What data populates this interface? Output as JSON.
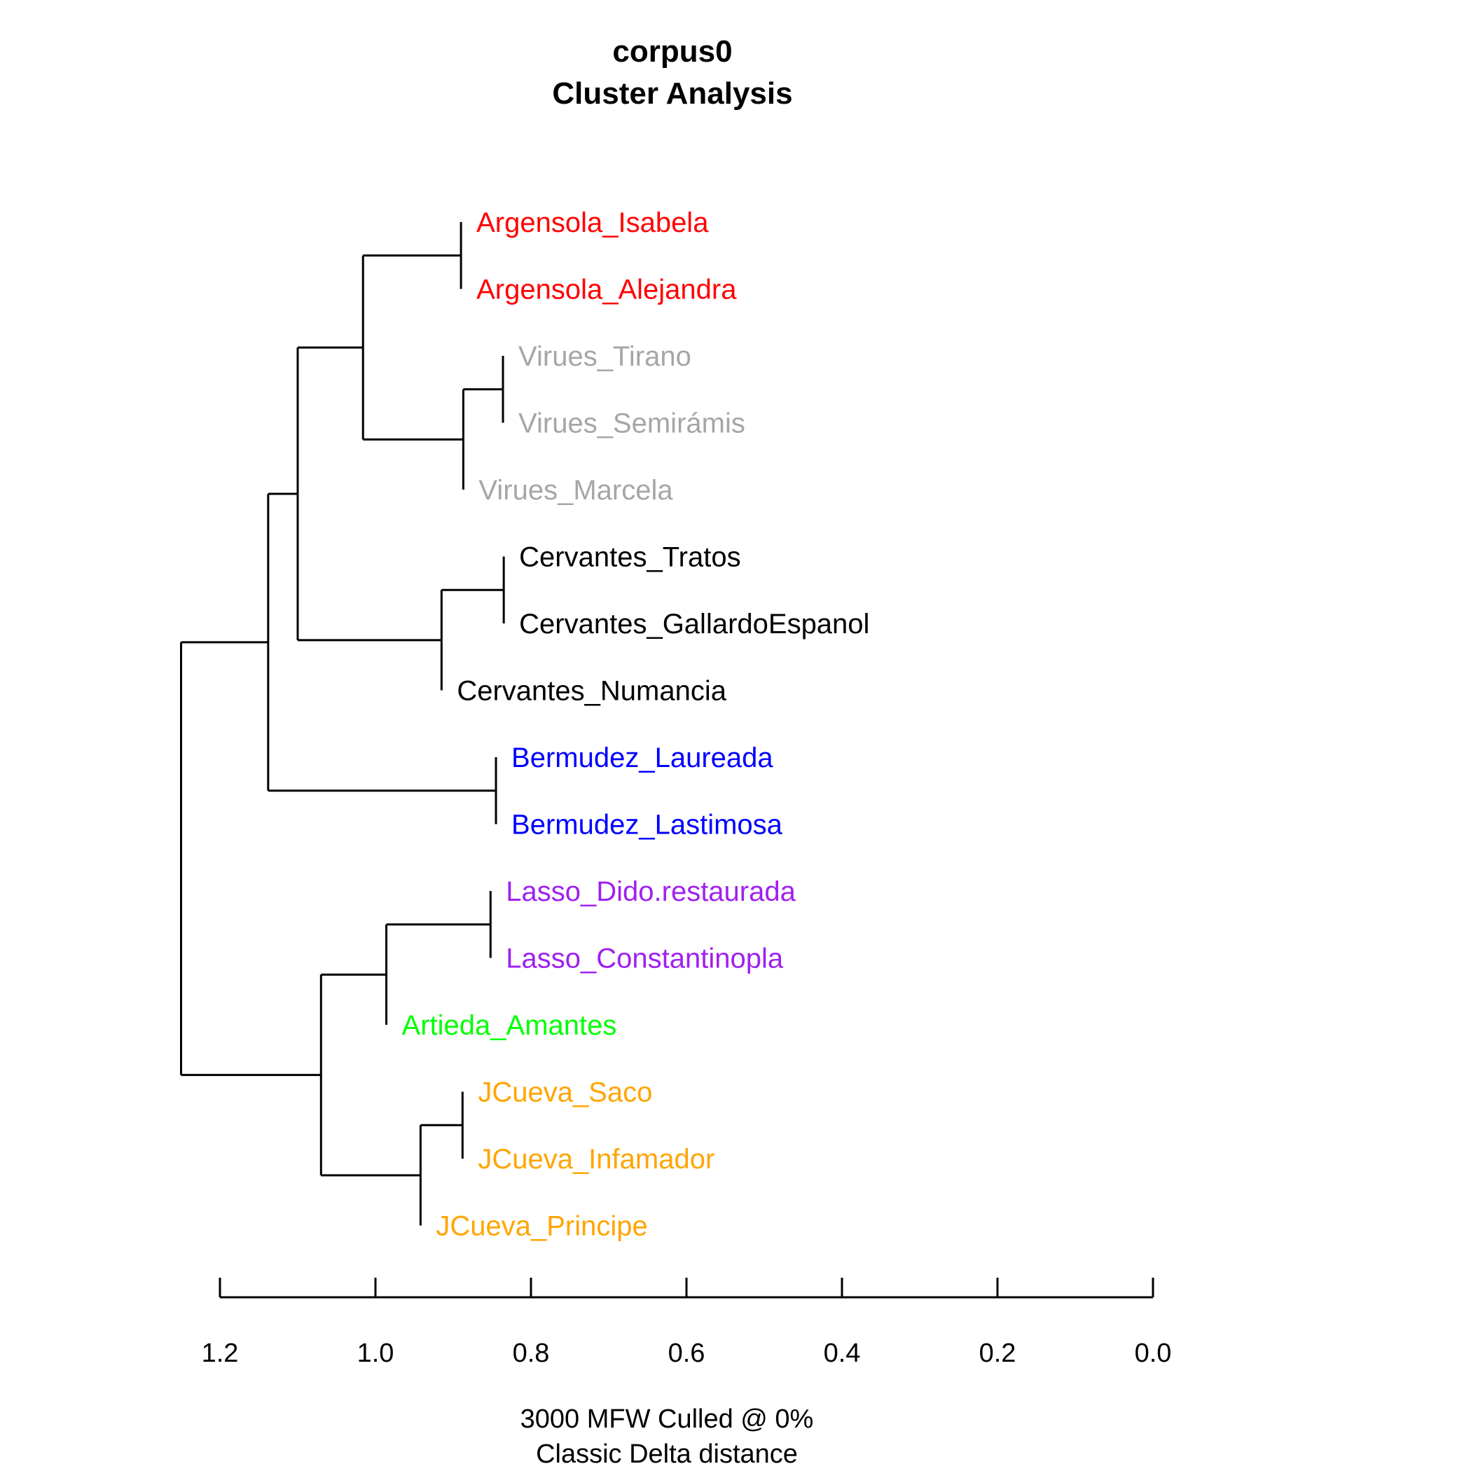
{
  "chart_data": {
    "type": "dendrogram",
    "title": [
      "corpus0",
      "Cluster Analysis"
    ],
    "xlabel": [
      "3000 MFW  Culled @ 0%",
      "Classic Delta distance"
    ],
    "xlim": [
      1.2,
      0.0
    ],
    "x_ticks": [
      1.2,
      1.0,
      0.8,
      0.6,
      0.4,
      0.2,
      0.0
    ],
    "x_tick_labels": [
      "1.2",
      "1.0",
      "0.8",
      "0.6",
      "0.4",
      "0.2",
      "0.0"
    ],
    "orientation": "leaves-right",
    "leaves": [
      {
        "label": "Argensola_Isabela",
        "color": "#FF0000"
      },
      {
        "label": "Argensola_Alejandra",
        "color": "#FF0000"
      },
      {
        "label": "Virues_Tirano",
        "color": "#A6A6A6"
      },
      {
        "label": "Virues_Semirámis",
        "color": "#A6A6A6"
      },
      {
        "label": "Virues_Marcela",
        "color": "#A6A6A6"
      },
      {
        "label": "Cervantes_Tratos",
        "color": "#000000"
      },
      {
        "label": "Cervantes_GallardoEspanol",
        "color": "#000000"
      },
      {
        "label": "Cervantes_Numancia",
        "color": "#000000"
      },
      {
        "label": "Bermudez_Laureada",
        "color": "#0000FF"
      },
      {
        "label": "Bermudez_Lastimosa",
        "color": "#0000FF"
      },
      {
        "label": "Lasso_Dido.restaurada",
        "color": "#A020F0"
      },
      {
        "label": "Lasso_Constantinopla",
        "color": "#A020F0"
      },
      {
        "label": "Artieda_Amantes",
        "color": "#00FF00"
      },
      {
        "label": "JCueva_Saco",
        "color": "#FFA500"
      },
      {
        "label": "JCueva_Infamador",
        "color": "#FFA500"
      },
      {
        "label": "JCueva_Principe",
        "color": "#FFA500"
      }
    ],
    "merges": [
      {
        "id": "m1",
        "height": 0.89,
        "children": [
          0,
          1
        ]
      },
      {
        "id": "m2",
        "height": 0.836,
        "children": [
          2,
          3
        ]
      },
      {
        "id": "m3",
        "height": 0.887,
        "children": [
          "m2",
          4
        ]
      },
      {
        "id": "m4",
        "height": 1.016,
        "children": [
          "m1",
          "m3"
        ]
      },
      {
        "id": "m5",
        "height": 0.835,
        "children": [
          5,
          6
        ]
      },
      {
        "id": "m6",
        "height": 0.915,
        "children": [
          "m5",
          7
        ]
      },
      {
        "id": "m7",
        "height": 1.1,
        "children": [
          "m4",
          "m6"
        ]
      },
      {
        "id": "m8",
        "height": 0.845,
        "children": [
          8,
          9
        ]
      },
      {
        "id": "m9",
        "height": 1.138,
        "children": [
          "m7",
          "m8"
        ]
      },
      {
        "id": "m10",
        "height": 0.852,
        "children": [
          10,
          11
        ]
      },
      {
        "id": "m11",
        "height": 0.986,
        "children": [
          "m10",
          12
        ]
      },
      {
        "id": "m12",
        "height": 0.888,
        "children": [
          13,
          14
        ]
      },
      {
        "id": "m13",
        "height": 0.942,
        "children": [
          "m12",
          15
        ]
      },
      {
        "id": "m14",
        "height": 1.07,
        "children": [
          "m11",
          "m13"
        ]
      },
      {
        "id": "m15",
        "height": 1.25,
        "children": [
          "m9",
          "m14"
        ]
      }
    ]
  }
}
